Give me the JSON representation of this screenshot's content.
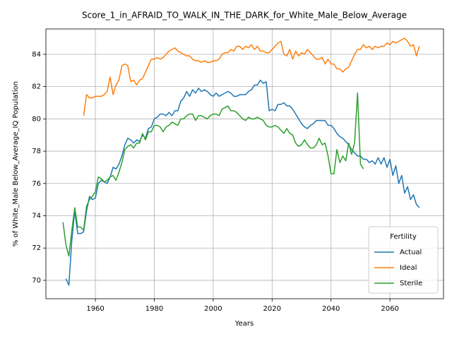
{
  "chart_data": {
    "type": "line",
    "title": "Score_1_in_AFRAID_TO_WALK_IN_THE_DARK_for_White_Male_Below_Average",
    "x_label": "Years",
    "y_label": "% of White_Male Below_Average_IQ Population",
    "legend_title": "Fertility",
    "legend": "lower right",
    "grid": true,
    "xlim": [
      1943.2,
      2078.2
    ],
    "ylim": [
      68.86,
      85.57
    ],
    "xticks": [
      1960,
      1980,
      2000,
      2020,
      2040,
      2060
    ],
    "yticks": [
      70,
      72,
      74,
      76,
      78,
      80,
      82,
      84
    ],
    "x": [
      1949,
      1950,
      1951,
      1952,
      1953,
      1954,
      1955,
      1956,
      1957,
      1958,
      1959,
      1960,
      1961,
      1962,
      1963,
      1964,
      1965,
      1966,
      1967,
      1968,
      1969,
      1970,
      1971,
      1972,
      1973,
      1974,
      1975,
      1976,
      1977,
      1978,
      1979,
      1980,
      1981,
      1982,
      1983,
      1984,
      1985,
      1986,
      1987,
      1988,
      1989,
      1990,
      1991,
      1992,
      1993,
      1994,
      1995,
      1996,
      1997,
      1998,
      1999,
      2000,
      2001,
      2002,
      2003,
      2004,
      2005,
      2006,
      2007,
      2008,
      2009,
      2010,
      2011,
      2012,
      2013,
      2014,
      2015,
      2016,
      2017,
      2018,
      2019,
      2020,
      2021,
      2022,
      2023,
      2024,
      2025,
      2026,
      2027,
      2028,
      2029,
      2030,
      2031,
      2032,
      2033,
      2034,
      2035,
      2036,
      2037,
      2038,
      2039,
      2040,
      2041,
      2042,
      2043,
      2044,
      2045,
      2046,
      2047,
      2048,
      2049,
      2050,
      2051,
      2052,
      2053,
      2054,
      2055,
      2056,
      2057,
      2058,
      2059,
      2060,
      2061,
      2062,
      2063,
      2064,
      2065,
      2066,
      2067,
      2068,
      2069,
      2070
    ],
    "series": [
      {
        "name": "Actual",
        "color": "#1f77b4",
        "values": [
          null,
          70.1,
          69.7,
          72.5,
          74.3,
          72.9,
          72.9,
          73.0,
          74.3,
          75.2,
          75.0,
          75.1,
          76.0,
          76.2,
          76.1,
          76.0,
          76.4,
          77.0,
          76.9,
          77.2,
          77.7,
          78.4,
          78.8,
          78.7,
          78.5,
          78.7,
          78.6,
          79.0,
          78.8,
          79.4,
          79.5,
          80.0,
          80.1,
          80.3,
          80.3,
          80.2,
          80.4,
          80.2,
          80.5,
          80.5,
          81.1,
          81.3,
          81.7,
          81.4,
          81.8,
          81.6,
          81.9,
          81.7,
          81.8,
          81.7,
          81.5,
          81.4,
          81.6,
          81.4,
          81.5,
          81.6,
          81.7,
          81.6,
          81.4,
          81.4,
          81.5,
          81.5,
          81.5,
          81.7,
          81.8,
          82.1,
          82.1,
          82.4,
          82.2,
          82.3,
          80.5,
          80.6,
          80.5,
          80.9,
          80.9,
          81.0,
          80.8,
          80.8,
          80.6,
          80.3,
          80.0,
          79.7,
          79.5,
          79.4,
          79.6,
          79.7,
          79.9,
          79.9,
          79.9,
          79.9,
          79.6,
          79.6,
          79.4,
          79.1,
          78.9,
          78.8,
          78.6,
          78.4,
          78.1,
          77.9,
          77.7,
          77.7,
          77.5,
          77.5,
          77.3,
          77.4,
          77.2,
          77.6,
          77.2,
          77.6,
          77.0,
          77.5,
          76.5,
          77.1,
          76.0,
          76.5,
          75.4,
          75.8,
          75.0,
          75.3,
          74.7,
          74.5
        ]
      },
      {
        "name": "Ideal",
        "color": "#ff7f0e",
        "values": [
          null,
          null,
          null,
          null,
          null,
          null,
          null,
          80.2,
          81.5,
          81.3,
          81.3,
          81.4,
          81.4,
          81.4,
          81.5,
          81.7,
          82.6,
          81.5,
          82.1,
          82.4,
          83.3,
          83.4,
          83.3,
          82.3,
          82.4,
          82.1,
          82.4,
          82.5,
          82.9,
          83.3,
          83.7,
          83.7,
          83.8,
          83.7,
          83.8,
          84.0,
          84.2,
          84.3,
          84.4,
          84.2,
          84.1,
          84.0,
          83.9,
          83.9,
          83.7,
          83.6,
          83.6,
          83.5,
          83.6,
          83.5,
          83.5,
          83.6,
          83.6,
          83.7,
          84.0,
          84.1,
          84.1,
          84.3,
          84.2,
          84.5,
          84.5,
          84.3,
          84.5,
          84.4,
          84.6,
          84.3,
          84.5,
          84.2,
          84.2,
          84.1,
          84.1,
          84.3,
          84.5,
          84.7,
          84.8,
          84.0,
          83.9,
          84.3,
          83.7,
          84.2,
          83.9,
          84.1,
          84.0,
          84.3,
          84.1,
          83.9,
          83.7,
          83.7,
          83.8,
          83.4,
          83.7,
          83.4,
          83.4,
          83.1,
          83.1,
          82.9,
          83.1,
          83.2,
          83.6,
          84.0,
          84.3,
          84.3,
          84.6,
          84.4,
          84.5,
          84.3,
          84.5,
          84.4,
          84.5,
          84.5,
          84.7,
          84.6,
          84.8,
          84.7,
          84.8,
          84.9,
          85.0,
          84.8,
          84.5,
          84.6,
          83.9,
          84.5
        ]
      },
      {
        "name": "Sterile",
        "color": "#2ca02c",
        "values": [
          73.6,
          72.2,
          71.5,
          73.1,
          74.5,
          73.3,
          73.3,
          73.1,
          74.6,
          75.0,
          75.2,
          75.5,
          76.4,
          76.3,
          76.1,
          76.2,
          76.4,
          76.5,
          76.2,
          76.7,
          77.3,
          78.1,
          78.3,
          78.4,
          78.2,
          78.5,
          78.5,
          79.1,
          78.7,
          79.2,
          79.2,
          79.6,
          79.6,
          79.5,
          79.2,
          79.5,
          79.6,
          79.8,
          79.7,
          79.6,
          80.0,
          80.0,
          80.2,
          80.3,
          80.3,
          79.9,
          80.2,
          80.2,
          80.1,
          80.0,
          80.2,
          80.3,
          80.3,
          80.2,
          80.6,
          80.7,
          80.8,
          80.5,
          80.5,
          80.4,
          80.2,
          80.0,
          79.9,
          80.1,
          80.0,
          80.0,
          80.1,
          80.0,
          79.9,
          79.6,
          79.5,
          79.5,
          79.6,
          79.5,
          79.3,
          79.1,
          79.4,
          79.1,
          79.0,
          78.5,
          78.3,
          78.4,
          78.7,
          78.4,
          78.2,
          78.2,
          78.4,
          78.8,
          78.4,
          78.5,
          77.7,
          76.6,
          76.6,
          78.1,
          77.3,
          77.7,
          77.4,
          78.5,
          77.8,
          78.5,
          81.6,
          77.2,
          76.9,
          null,
          null,
          null,
          null,
          null,
          null,
          null,
          null,
          null,
          null,
          null,
          null,
          null,
          null,
          null,
          null,
          null,
          null,
          null
        ]
      }
    ]
  }
}
